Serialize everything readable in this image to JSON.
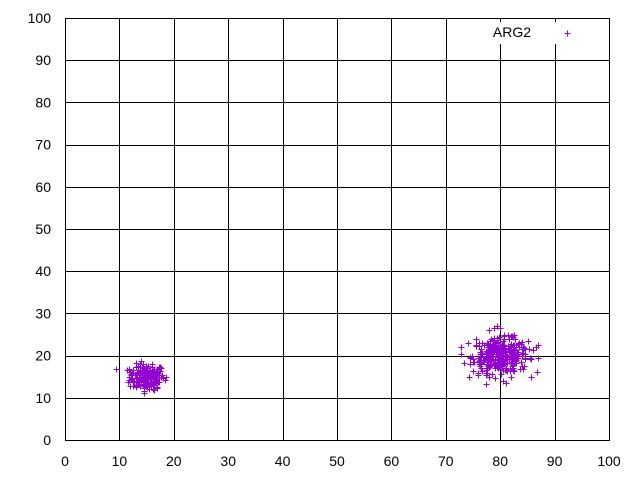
{
  "chart_data": {
    "type": "scatter",
    "title": "",
    "xlabel": "",
    "ylabel": "",
    "xlim": [
      0,
      100
    ],
    "ylim": [
      0,
      100
    ],
    "x_ticks": [
      "0",
      "10",
      "20",
      "30",
      "40",
      "50",
      "60",
      "70",
      "80",
      "90",
      "100"
    ],
    "y_ticks": [
      "0",
      "10",
      "20",
      "30",
      "40",
      "50",
      "60",
      "70",
      "80",
      "90",
      "100"
    ],
    "grid": true,
    "legend_position": "top-right",
    "marker": "plus",
    "series": [
      {
        "name": "ARG2",
        "color": "#9400d3",
        "clusters": [
          {
            "center": [
              15,
              15
            ],
            "spread": [
              1.6,
              1.5
            ],
            "count": 180
          },
          {
            "center": [
              80,
              20
            ],
            "spread": [
              2.5,
              2.0
            ],
            "count": 320
          }
        ],
        "points": [
          [
            12.0,
            16.0
          ],
          [
            13.0,
            12.5
          ],
          [
            13.5,
            17.5
          ],
          [
            16.0,
            18.0
          ],
          [
            17.5,
            17.0
          ],
          [
            18.5,
            15.0
          ],
          [
            17.0,
            12.5
          ],
          [
            14.5,
            11.5
          ],
          [
            15.5,
            12.0
          ],
          [
            12.5,
            14.0
          ],
          [
            74.0,
            23.0
          ],
          [
            74.5,
            19.5
          ],
          [
            75.5,
            24.0
          ],
          [
            76.5,
            17.0
          ],
          [
            77.5,
            22.5
          ],
          [
            78.0,
            26.0
          ],
          [
            79.5,
            27.0
          ],
          [
            80.0,
            26.5
          ],
          [
            80.5,
            14.0
          ],
          [
            82.5,
            25.0
          ],
          [
            83.5,
            22.0
          ],
          [
            84.5,
            21.5
          ],
          [
            85.5,
            19.5
          ],
          [
            86.5,
            22.0
          ],
          [
            87.0,
            22.5
          ],
          [
            84.0,
            17.5
          ],
          [
            82.0,
            15.0
          ],
          [
            81.0,
            13.5
          ],
          [
            78.0,
            15.0
          ],
          [
            76.0,
            15.5
          ]
        ]
      }
    ]
  }
}
